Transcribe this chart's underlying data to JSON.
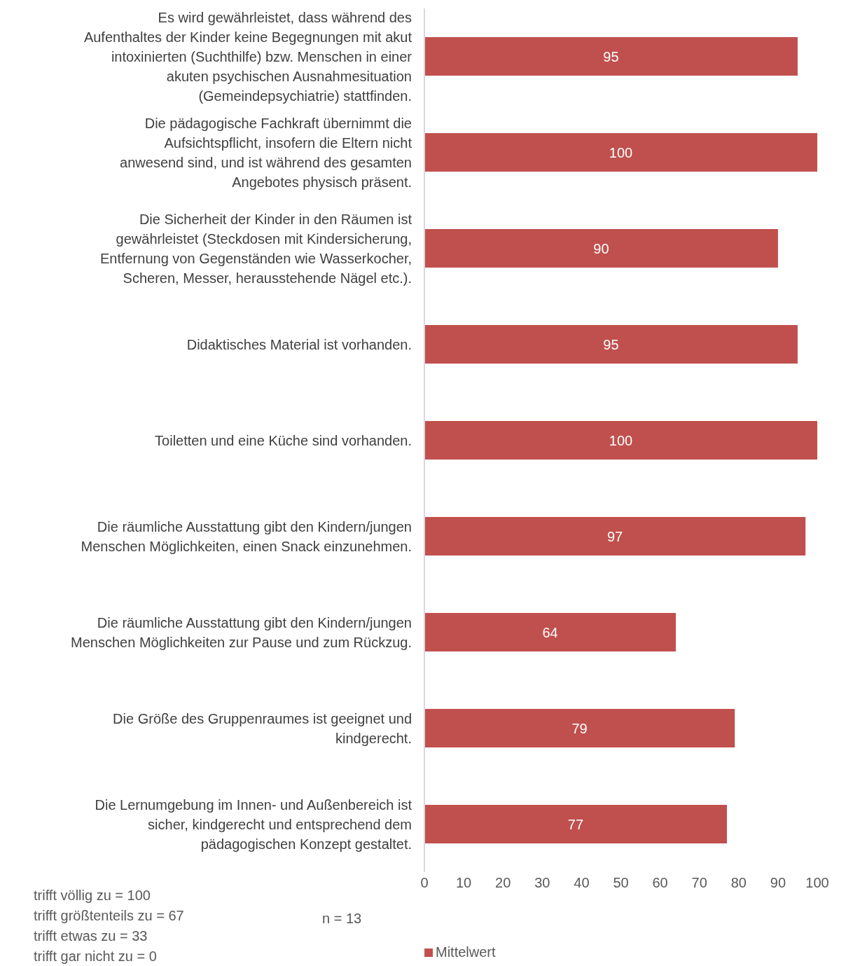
{
  "chart_data": {
    "type": "bar",
    "orientation": "horizontal",
    "categories": [
      "Es wird gewährleistet, dass während des Aufenthaltes der Kinder keine Begegnungen mit akut intoxinierten (Suchthilfe) bzw. Menschen in einer akuten psychischen Ausnahmesituation (Gemeindepsychiatrie) stattfinden.",
      "Die pädagogische Fachkraft übernimmt die Aufsichtspflicht, insofern die Eltern nicht anwesend sind, und ist während des gesamten Angebotes physisch präsent.",
      "Die Sicherheit der Kinder in den Räumen ist gewährleistet (Steckdosen mit Kindersicherung, Entfernung von Gegenständen wie Wasserkocher, Scheren, Messer, herausstehende Nägel etc.).",
      "Didaktisches Material ist vorhanden.",
      "Toiletten und eine Küche sind vorhanden.",
      "Die räumliche Ausstattung gibt den Kindern/jungen Menschen Möglichkeiten, einen Snack einzunehmen.",
      "Die räumliche Ausstattung gibt den Kindern/jungen Menschen Möglichkeiten zur Pause und zum Rückzug.",
      "Die Größe des Gruppenraumes ist geeignet und kindgerecht.",
      "Die Lernumgebung im Innen- und Außenbereich ist sicher, kindgerecht und entsprechend dem pädagogischen Konzept gestaltet."
    ],
    "series": [
      {
        "name": "Mittelwert",
        "color": "#c0504d",
        "values": [
          95,
          100,
          90,
          95,
          100,
          97,
          64,
          79,
          77
        ]
      }
    ],
    "xlim": [
      0,
      100
    ],
    "xticks": [
      0,
      10,
      20,
      30,
      40,
      50,
      60,
      70,
      80,
      90,
      100
    ],
    "data_labels": true,
    "legend": "bottom",
    "annotations": [
      "trifft völlig zu = 100",
      "trifft größtenteils zu = 67",
      "trifft etwas zu = 33",
      "trifft gar nicht zu = 0",
      "n = 13"
    ]
  }
}
